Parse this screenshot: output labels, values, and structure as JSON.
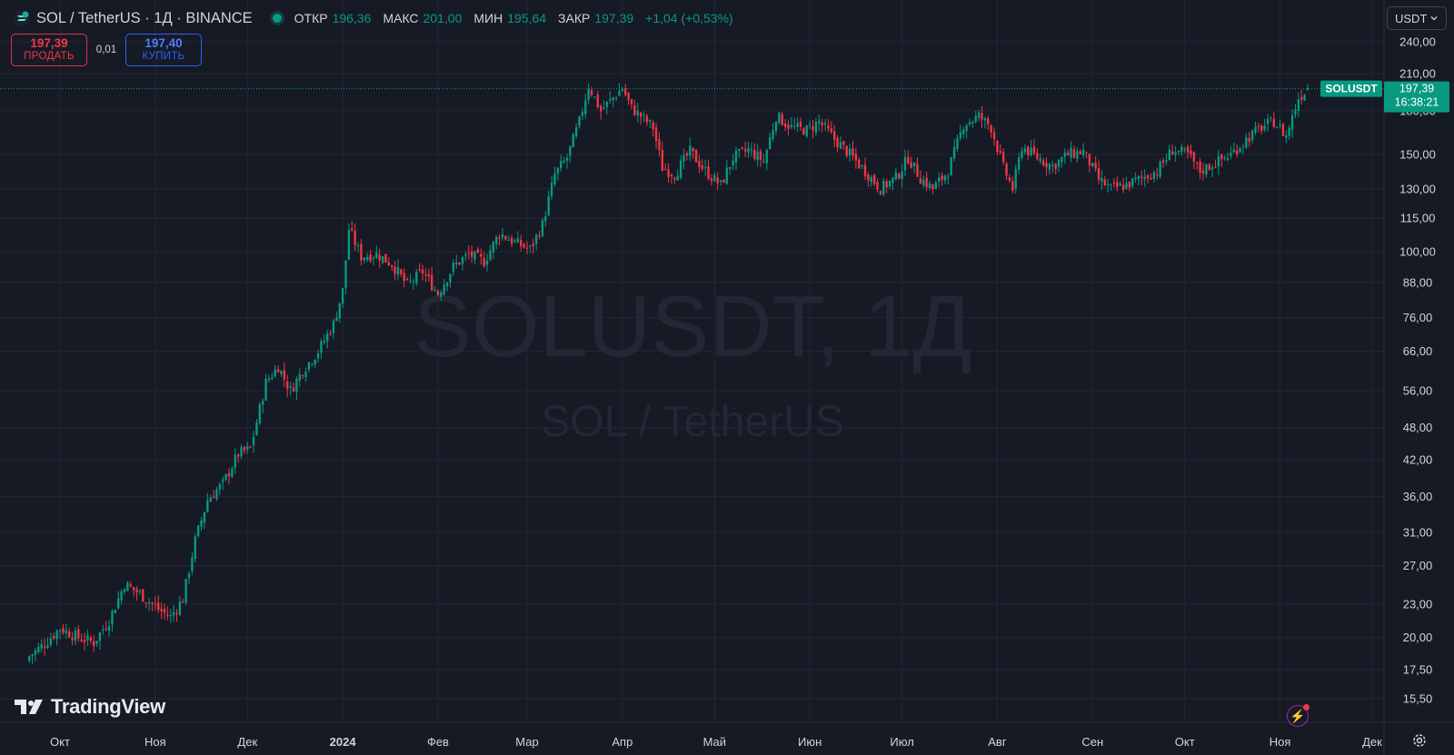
{
  "header": {
    "symbol_title": "SOL / TetherUS · 1Д · BINANCE",
    "ohlc": [
      {
        "label": "ОТКР",
        "value": "196,36"
      },
      {
        "label": "МАКС",
        "value": "201,00"
      },
      {
        "label": "МИН",
        "value": "195,64"
      },
      {
        "label": "ЗАКР",
        "value": "197,39"
      }
    ],
    "change": "+1,04 (+0,53%)"
  },
  "trade": {
    "sell_price": "197,39",
    "sell_label": "ПРОДАТЬ",
    "spread": "0,01",
    "buy_price": "197,40",
    "buy_label": "КУПИТЬ"
  },
  "currency_selector": "USDT",
  "watermark": {
    "line1": "SOLUSDT, 1Д",
    "line2": "SOL / TetherUS"
  },
  "logo_text": "TradingView",
  "price_tag": {
    "symbol": "SOLUSDT",
    "price": "197,39",
    "countdown": "16:38:21"
  },
  "colors": {
    "background": "#161a25",
    "up": "#089981",
    "down": "#f23645",
    "grid": "#232734",
    "tag": "#089981"
  },
  "icons": [
    "sol-logo-icon",
    "chevron-down-icon",
    "bolt-icon",
    "gear-icon"
  ],
  "chart_data": {
    "type": "candlestick",
    "scale": "log",
    "ylim": [
      14.5,
      250
    ],
    "ytick_labels": [
      "240,00",
      "210,00",
      "180,00",
      "150,00",
      "130,00",
      "115,00",
      "100,00",
      "88,00",
      "76,00",
      "66,00",
      "56,00",
      "48,00",
      "42,00",
      "36,00",
      "31,00",
      "27,00",
      "23,00",
      "20,00",
      "17,50",
      "15,50"
    ],
    "yticks": [
      240,
      210,
      180,
      150,
      130,
      115,
      100,
      88,
      76,
      66,
      56,
      48,
      42,
      36,
      31,
      27,
      23,
      20,
      17.5,
      15.5
    ],
    "xtick_labels": [
      "Окт",
      "Ноя",
      "Дек",
      "2024",
      "Фев",
      "Мар",
      "Апр",
      "Май",
      "Июн",
      "Июл",
      "Авг",
      "Сен",
      "Окт",
      "Ноя",
      "Дек"
    ],
    "xtick_dates": [
      "2023-10-01",
      "2023-11-01",
      "2023-12-01",
      "2024-01-01",
      "2024-02-01",
      "2024-03-01",
      "2024-04-01",
      "2024-05-01",
      "2024-06-01",
      "2024-07-01",
      "2024-08-01",
      "2024-09-01",
      "2024-10-01",
      "2024-11-01",
      "2024-12-01"
    ],
    "last_price": 197.39,
    "close_path": [
      [
        "2023-09-21",
        18.5
      ],
      [
        "2023-09-26",
        19.5
      ],
      [
        "2023-10-01",
        20.8
      ],
      [
        "2023-10-07",
        20.0
      ],
      [
        "2023-10-12",
        19.6
      ],
      [
        "2023-10-17",
        21.5
      ],
      [
        "2023-10-22",
        25.0
      ],
      [
        "2023-10-27",
        24.0
      ],
      [
        "2023-11-02",
        22.5
      ],
      [
        "2023-11-06",
        21.8
      ],
      [
        "2023-11-10",
        23.5
      ],
      [
        "2023-11-14",
        30.0
      ],
      [
        "2023-11-18",
        35.5
      ],
      [
        "2023-11-23",
        38.0
      ],
      [
        "2023-11-28",
        43.0
      ],
      [
        "2023-12-02",
        44.0
      ],
      [
        "2023-12-07",
        58.0
      ],
      [
        "2023-12-11",
        62.0
      ],
      [
        "2023-12-15",
        56.0
      ],
      [
        "2023-12-19",
        61.0
      ],
      [
        "2023-12-24",
        66.0
      ],
      [
        "2023-12-29",
        74.0
      ],
      [
        "2024-01-01",
        85.0
      ],
      [
        "2024-01-03",
        110.0
      ],
      [
        "2024-01-07",
        98.0
      ],
      [
        "2024-01-12",
        99.0
      ],
      [
        "2024-01-17",
        95.0
      ],
      [
        "2024-01-22",
        87.0
      ],
      [
        "2024-01-27",
        92.0
      ],
      [
        "2024-02-01",
        84.0
      ],
      [
        "2024-02-06",
        94.0
      ],
      [
        "2024-02-11",
        99.0
      ],
      [
        "2024-02-16",
        96.0
      ],
      [
        "2024-02-21",
        108.0
      ],
      [
        "2024-02-26",
        104.0
      ],
      [
        "2024-03-02",
        101.0
      ],
      [
        "2024-03-06",
        112.0
      ],
      [
        "2024-03-10",
        138.0
      ],
      [
        "2024-03-14",
        148.0
      ],
      [
        "2024-03-18",
        172.0
      ],
      [
        "2024-03-21",
        200.0
      ],
      [
        "2024-03-25",
        180.0
      ],
      [
        "2024-03-29",
        190.0
      ],
      [
        "2024-04-01",
        198.0
      ],
      [
        "2024-04-04",
        182.0
      ],
      [
        "2024-04-07",
        176.0
      ],
      [
        "2024-04-11",
        168.0
      ],
      [
        "2024-04-14",
        142.0
      ],
      [
        "2024-04-18",
        138.0
      ],
      [
        "2024-04-23",
        152.0
      ],
      [
        "2024-04-28",
        140.0
      ],
      [
        "2024-05-03",
        132.0
      ],
      [
        "2024-05-07",
        148.0
      ],
      [
        "2024-05-12",
        153.0
      ],
      [
        "2024-05-17",
        146.0
      ],
      [
        "2024-05-21",
        176.0
      ],
      [
        "2024-05-26",
        168.0
      ],
      [
        "2024-05-31",
        166.0
      ],
      [
        "2024-06-04",
        172.0
      ],
      [
        "2024-06-09",
        160.0
      ],
      [
        "2024-06-14",
        150.0
      ],
      [
        "2024-06-19",
        140.0
      ],
      [
        "2024-06-24",
        130.0
      ],
      [
        "2024-06-29",
        136.0
      ],
      [
        "2024-07-03",
        148.0
      ],
      [
        "2024-07-07",
        136.0
      ],
      [
        "2024-07-11",
        130.0
      ],
      [
        "2024-07-16",
        140.0
      ],
      [
        "2024-07-21",
        170.0
      ],
      [
        "2024-07-26",
        176.0
      ],
      [
        "2024-07-30",
        168.0
      ],
      [
        "2024-08-03",
        142.0
      ],
      [
        "2024-08-06",
        130.0
      ],
      [
        "2024-08-09",
        155.0
      ],
      [
        "2024-08-14",
        148.0
      ],
      [
        "2024-08-19",
        143.0
      ],
      [
        "2024-08-24",
        150.0
      ],
      [
        "2024-08-29",
        152.0
      ],
      [
        "2024-09-03",
        135.0
      ],
      [
        "2024-09-07",
        130.0
      ],
      [
        "2024-09-12",
        132.0
      ],
      [
        "2024-09-17",
        136.0
      ],
      [
        "2024-09-22",
        140.0
      ],
      [
        "2024-09-27",
        153.0
      ],
      [
        "2024-10-02",
        150.0
      ],
      [
        "2024-10-06",
        140.0
      ],
      [
        "2024-10-11",
        145.0
      ],
      [
        "2024-10-16",
        150.0
      ],
      [
        "2024-10-21",
        160.0
      ],
      [
        "2024-10-26",
        168.0
      ],
      [
        "2024-10-30",
        172.0
      ],
      [
        "2024-11-03",
        162.0
      ],
      [
        "2024-11-07",
        190.0
      ],
      [
        "2024-11-10",
        197.39
      ]
    ]
  }
}
